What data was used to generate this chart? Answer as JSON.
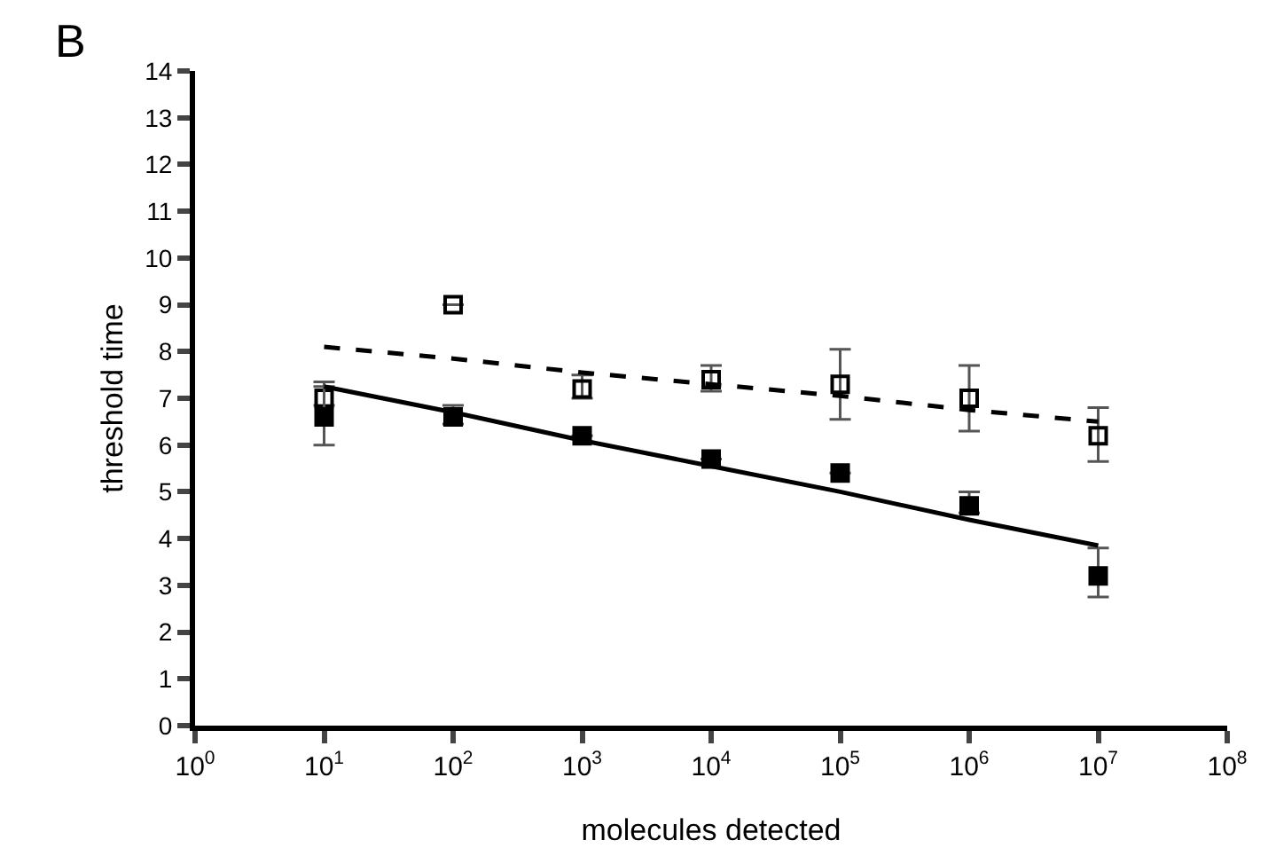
{
  "chart_data": {
    "type": "scatter",
    "xlabel": "molecules detected",
    "ylabel": "threshold time",
    "annotations": [
      "B"
    ],
    "x": [
      10,
      100,
      1000,
      10000,
      100000,
      1000000,
      10000000
    ],
    "series": [
      {
        "type": "scatter",
        "color": "#000000",
        "marker": "square-open",
        "values": [
          7.0,
          9.0,
          7.2,
          7.4,
          7.3,
          7.0,
          6.2
        ],
        "errors": [
          [
            6.85,
            7.35
          ],
          null,
          [
            7.0,
            7.5
          ],
          [
            7.15,
            7.7
          ],
          [
            6.55,
            8.05
          ],
          [
            6.3,
            7.7
          ],
          [
            5.65,
            6.8
          ]
        ]
      },
      {
        "type": "scatter",
        "color": "#000000",
        "marker": "square",
        "values": [
          6.6,
          6.6,
          6.2,
          5.7,
          5.4,
          4.7,
          3.2
        ],
        "errors": [
          [
            6.0,
            7.25
          ],
          [
            6.45,
            6.85
          ],
          null,
          null,
          null,
          [
            4.55,
            5.0
          ],
          [
            2.75,
            3.8
          ]
        ]
      },
      {
        "type": "line",
        "color": "#000000",
        "line_style": "dashed",
        "marker": "none",
        "values": [
          8.1,
          7.85,
          7.55,
          7.3,
          7.05,
          6.75,
          6.5
        ]
      },
      {
        "type": "line",
        "color": "#000000",
        "line_style": "solid",
        "marker": "none",
        "values": [
          7.25,
          6.7,
          6.1,
          5.55,
          5.0,
          4.4,
          3.85
        ]
      }
    ],
    "log": "x",
    "xlim": [
      1,
      100000000
    ],
    "xticks": [
      {
        "value": 1,
        "label": "10$^{0}$"
      },
      {
        "value": 10,
        "label": "10$^{1}$"
      },
      {
        "value": 100,
        "label": "10$^{2}$"
      },
      {
        "value": 1000,
        "label": "10$^{3}$"
      },
      {
        "value": 10000,
        "label": "10$^{4}$"
      },
      {
        "value": 100000,
        "label": "10$^{5}$"
      },
      {
        "value": 1000000,
        "label": "10$^{6}$"
      },
      {
        "value": 10000000,
        "label": "10$^{7}$"
      },
      {
        "value": 100000000,
        "label": "10$^{8}$"
      }
    ],
    "ylim": [
      0,
      14
    ],
    "yticks": [
      0,
      1,
      2,
      3,
      4,
      5,
      6,
      7,
      8,
      9,
      10,
      11,
      12,
      13,
      14
    ],
    "tick_labels": true
  }
}
